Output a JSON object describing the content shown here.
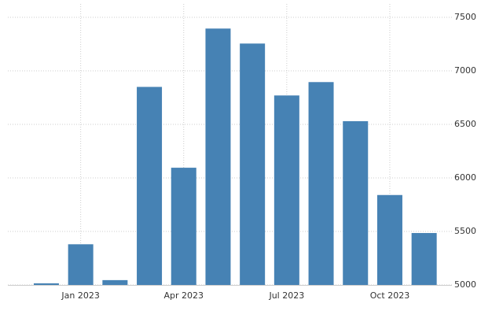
{
  "chart_data": {
    "type": "bar",
    "categories": [
      null,
      "Jan 2023",
      null,
      null,
      "Apr 2023",
      null,
      null,
      "Jul 2023",
      null,
      null,
      "Oct 2023",
      null
    ],
    "values": [
      5015,
      5380,
      5045,
      6850,
      6095,
      7395,
      7255,
      6770,
      6895,
      6530,
      5840,
      5485
    ],
    "color": "#4682b4",
    "ylim": [
      5000,
      7500
    ],
    "yticks": [
      5000,
      5500,
      6000,
      6500,
      7000,
      7500
    ],
    "grid": true
  }
}
